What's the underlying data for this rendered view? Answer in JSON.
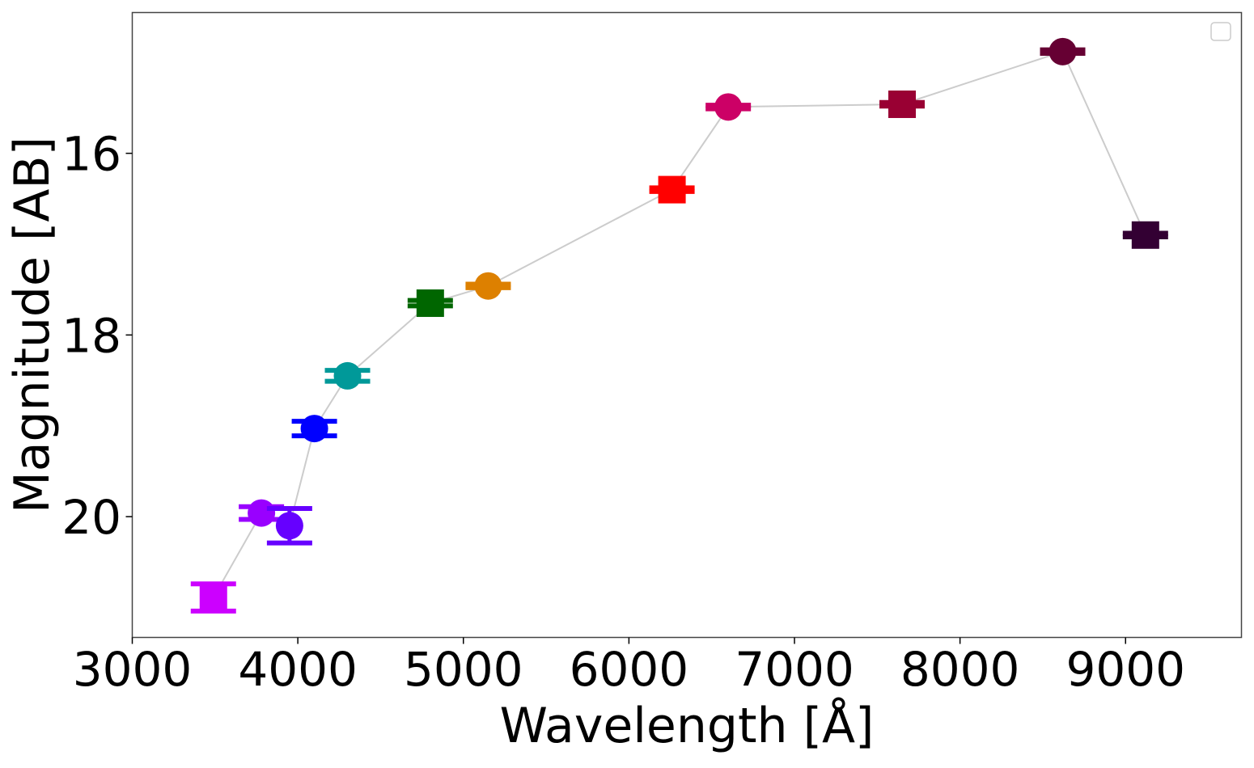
{
  "chart_data": {
    "type": "scatter",
    "title": "",
    "xlabel": "Wavelength [Å]",
    "ylabel": "Magnitude [AB]",
    "xlim": [
      3000,
      9700
    ],
    "ylim": [
      21.33,
      14.45
    ],
    "y_inverted": true,
    "xticks": [
      3000,
      4000,
      5000,
      6000,
      7000,
      8000,
      9000
    ],
    "xtick_labels": [
      "3000",
      "4000",
      "5000",
      "6000",
      "7000",
      "8000",
      "9000"
    ],
    "yticks": [
      16,
      18,
      20
    ],
    "ytick_labels": [
      "16",
      "18",
      "20"
    ],
    "grid": false,
    "legend": {
      "position": "top-right",
      "entries": []
    },
    "connector_color": "#cccccc",
    "points": [
      {
        "x": 3490,
        "y": 20.89,
        "yerr": 0.15,
        "marker": "square",
        "color": "#cc00ff"
      },
      {
        "x": 3780,
        "y": 19.96,
        "yerr": 0.07,
        "marker": "circle",
        "color": "#9900ff"
      },
      {
        "x": 3950,
        "y": 20.1,
        "yerr": 0.19,
        "marker": "circle",
        "color": "#6600ff"
      },
      {
        "x": 4100,
        "y": 19.03,
        "yerr": 0.08,
        "marker": "circle",
        "color": "#0000ff"
      },
      {
        "x": 4300,
        "y": 18.45,
        "yerr": 0.06,
        "marker": "circle",
        "color": "#009999"
      },
      {
        "x": 4800,
        "y": 17.65,
        "yerr": 0.03,
        "marker": "square",
        "color": "#006600"
      },
      {
        "x": 5150,
        "y": 17.46,
        "yerr": 0.02,
        "marker": "circle",
        "color": "#dd8000"
      },
      {
        "x": 6260,
        "y": 16.4,
        "yerr": 0.02,
        "marker": "square",
        "color": "#ff0000"
      },
      {
        "x": 6600,
        "y": 15.49,
        "yerr": 0.02,
        "marker": "circle",
        "color": "#cc0066"
      },
      {
        "x": 7650,
        "y": 15.46,
        "yerr": 0.02,
        "marker": "square",
        "color": "#990033"
      },
      {
        "x": 8620,
        "y": 14.88,
        "yerr": 0.02,
        "marker": "circle",
        "color": "#660033"
      },
      {
        "x": 9120,
        "y": 16.9,
        "yerr": 0.02,
        "marker": "square",
        "color": "#330033"
      }
    ],
    "connected_order": [
      0,
      1,
      2,
      3,
      4,
      5,
      6,
      7,
      8,
      9,
      10,
      11
    ]
  }
}
